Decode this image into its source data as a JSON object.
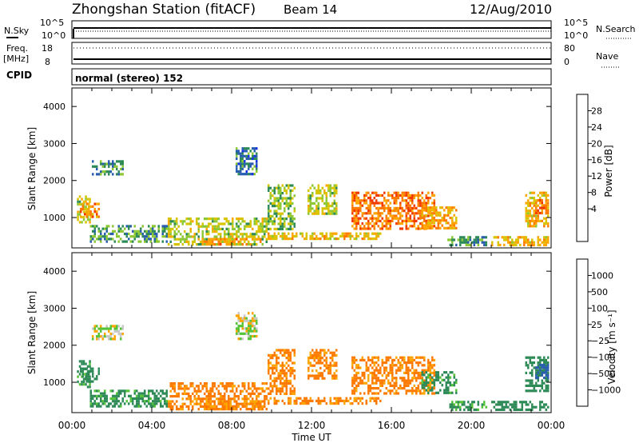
{
  "header": {
    "title": "Zhongshan Station (fitACF)",
    "beam": "Beam 14",
    "date": "12/Aug/2010"
  },
  "panels": {
    "nsky_label": "N.Sky",
    "nsky_ticks": [
      "10^5",
      "10^0"
    ],
    "nsearch_label": "N.Search",
    "nsearch_ticks": [
      "10^5",
      "10^0"
    ],
    "freq_label": "Freq.",
    "freq_unit": "[MHz]",
    "freq_ticks": [
      "18",
      "8"
    ],
    "nave_label": "Nave",
    "nave_ticks": [
      "80",
      "0"
    ],
    "cpid_label": "CPID",
    "cpid_value": "normal (stereo) 152"
  },
  "chart_data": [
    {
      "type": "heatmap",
      "name": "power",
      "ylabel": "Slant Range [km]",
      "ylim": [
        180,
        4500
      ],
      "yticks": [
        "1000",
        "2000",
        "3000",
        "4000"
      ],
      "xticks": [
        "00:00",
        "04:00",
        "08:00",
        "12:00",
        "16:00",
        "20:00",
        "00:00"
      ],
      "colorbar": {
        "label": "Power [dB]",
        "ticks": [
          "28",
          "24",
          "20",
          "16",
          "12",
          "8",
          "4"
        ],
        "colors": [
          "#e00000",
          "#f23a00",
          "#ff7a00",
          "#ffa500",
          "#d8c400",
          "#8ec834",
          "#2e8b57",
          "#2a5fb0",
          "#1430e6"
        ]
      },
      "regions": [
        {
          "t": [
            0.25,
            0.9
          ],
          "r": [
            900,
            1600
          ],
          "v": 14
        },
        {
          "t": [
            0.4,
            1.4
          ],
          "r": [
            1000,
            1400
          ],
          "v": 22
        },
        {
          "t": [
            0.9,
            4.8
          ],
          "r": [
            350,
            800
          ],
          "v": 9
        },
        {
          "t": [
            1.0,
            2.6
          ],
          "r": [
            2200,
            2550
          ],
          "v": 8
        },
        {
          "t": [
            4.8,
            9.8
          ],
          "r": [
            300,
            1000
          ],
          "v": 14
        },
        {
          "t": [
            6.5,
            9.5
          ],
          "r": [
            250,
            450
          ],
          "v": 22
        },
        {
          "t": [
            8.2,
            9.3
          ],
          "r": [
            2200,
            2900
          ],
          "v": 6
        },
        {
          "t": [
            9.8,
            15.5
          ],
          "r": [
            400,
            600
          ],
          "v": 18
        },
        {
          "t": [
            9.8,
            11.2
          ],
          "r": [
            700,
            1900
          ],
          "v": 12
        },
        {
          "t": [
            11.8,
            13.3
          ],
          "r": [
            1100,
            1900
          ],
          "v": 14
        },
        {
          "t": [
            14.0,
            18.2
          ],
          "r": [
            700,
            1700
          ],
          "v": 24
        },
        {
          "t": [
            17.5,
            19.3
          ],
          "r": [
            700,
            1300
          ],
          "v": 20
        },
        {
          "t": [
            18.8,
            20.8
          ],
          "r": [
            250,
            500
          ],
          "v": 8
        },
        {
          "t": [
            21.0,
            23.9
          ],
          "r": [
            250,
            500
          ],
          "v": 18
        },
        {
          "t": [
            22.7,
            23.9
          ],
          "r": [
            800,
            1700
          ],
          "v": 18
        },
        {
          "t": [
            23.2,
            23.9
          ],
          "r": [
            1100,
            1500
          ],
          "v": 24
        }
      ]
    },
    {
      "type": "heatmap",
      "name": "velocity",
      "ylabel": "Slant Range [km]",
      "ylim": [
        180,
        4500
      ],
      "yticks": [
        "1000",
        "2000",
        "3000",
        "4000"
      ],
      "xticks": [
        "00:00",
        "04:00",
        "08:00",
        "12:00",
        "16:00",
        "20:00",
        "00:00"
      ],
      "xlabel": "Time UT",
      "colorbar": {
        "label": "Velocity [m s⁻¹]",
        "ticks": [
          "1000",
          "500",
          "100",
          "25",
          "−25",
          "−100",
          "−500",
          "−1000"
        ],
        "colors": [
          "#1430e6",
          "#2a5fb0",
          "#2e8b57",
          "#55c438",
          "#c8c8c8",
          "#ffa500",
          "#ff7a00",
          "#f23a00",
          "#e00000"
        ]
      },
      "regions": [
        {
          "t": [
            0.25,
            0.9
          ],
          "r": [
            900,
            1600
          ],
          "v": 150
        },
        {
          "t": [
            0.4,
            1.4
          ],
          "r": [
            1000,
            1400
          ],
          "v": 300
        },
        {
          "t": [
            0.9,
            4.8
          ],
          "r": [
            350,
            800
          ],
          "v": 150
        },
        {
          "t": [
            1.0,
            2.6
          ],
          "r": [
            2200,
            2550
          ],
          "v": 0
        },
        {
          "t": [
            4.8,
            9.8
          ],
          "r": [
            300,
            1000
          ],
          "v": -150
        },
        {
          "t": [
            6.5,
            9.5
          ],
          "r": [
            250,
            450
          ],
          "v": -150
        },
        {
          "t": [
            8.2,
            9.3
          ],
          "r": [
            2200,
            2900
          ],
          "v": 0
        },
        {
          "t": [
            9.8,
            15.5
          ],
          "r": [
            400,
            600
          ],
          "v": -150
        },
        {
          "t": [
            9.8,
            11.2
          ],
          "r": [
            700,
            1900
          ],
          "v": -150
        },
        {
          "t": [
            11.8,
            13.3
          ],
          "r": [
            1100,
            1900
          ],
          "v": -150
        },
        {
          "t": [
            14.0,
            18.2
          ],
          "r": [
            700,
            1700
          ],
          "v": -150
        },
        {
          "t": [
            17.5,
            19.3
          ],
          "r": [
            700,
            1300
          ],
          "v": 150
        },
        {
          "t": [
            18.8,
            20.8
          ],
          "r": [
            250,
            500
          ],
          "v": 150
        },
        {
          "t": [
            21.0,
            23.9
          ],
          "r": [
            250,
            500
          ],
          "v": 300
        },
        {
          "t": [
            22.7,
            23.9
          ],
          "r": [
            800,
            1700
          ],
          "v": 300
        },
        {
          "t": [
            23.2,
            23.9
          ],
          "r": [
            1100,
            1500
          ],
          "v": 600
        }
      ]
    }
  ]
}
